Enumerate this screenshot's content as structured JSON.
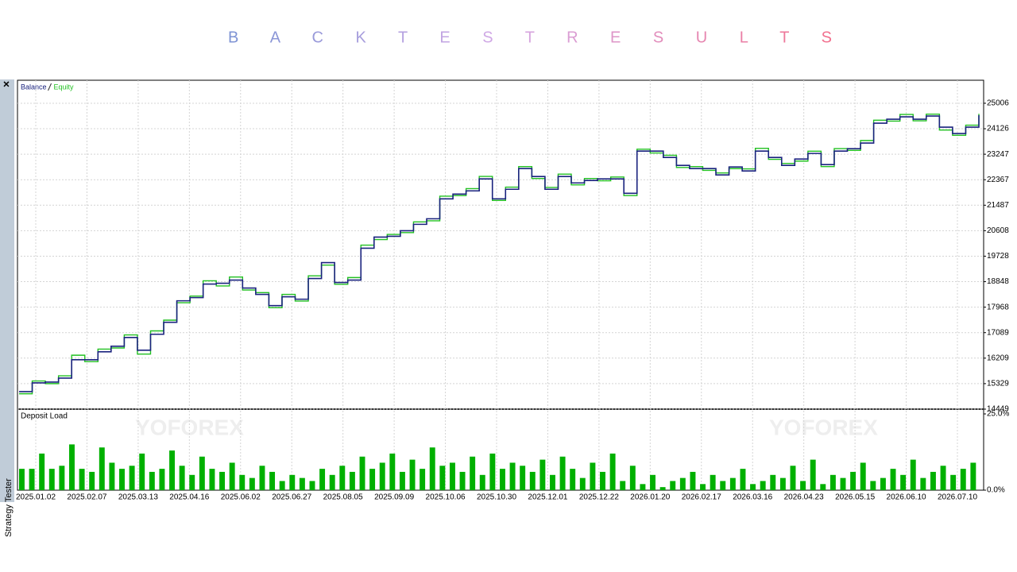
{
  "title": "B A C K T E S T R E S U L T S",
  "panel": {
    "label": "Strategy Tester",
    "close": "×"
  },
  "watermark": "YOFOREX",
  "chart_data": [
    {
      "type": "line",
      "series": [
        {
          "name": "Balance",
          "color": "#1a237e",
          "values": [
            15054,
            15356,
            15384,
            15521,
            16154,
            16154,
            16429,
            16621,
            16923,
            16484,
            17033,
            17446,
            18188,
            18298,
            18765,
            18793,
            18903,
            18628,
            18408,
            18023,
            18326,
            18243,
            18958,
            19507,
            18820,
            18903,
            20002,
            20387,
            20415,
            20607,
            20827,
            21019,
            21707,
            21872,
            21982,
            22394,
            21707,
            22037,
            22751,
            22476,
            22037,
            22476,
            22256,
            22339,
            22394,
            22394,
            21899,
            23356,
            23356,
            23136,
            22861,
            22751,
            22751,
            22531,
            22806,
            22668,
            23356,
            23136,
            22861,
            23081,
            23274,
            22888,
            23356,
            23438,
            23631,
            24318,
            24455,
            24538,
            24455,
            24565,
            24180,
            23961,
            24180,
            24593
          ]
        },
        {
          "name": "Equity",
          "color": "#22c022",
          "values": [
            14980,
            15420,
            15330,
            15600,
            16310,
            16090,
            16520,
            16560,
            17010,
            16350,
            17150,
            17520,
            18120,
            18350,
            18880,
            18700,
            19010,
            18560,
            18470,
            17950,
            18410,
            18180,
            19050,
            19420,
            18760,
            18990,
            20110,
            20300,
            20480,
            20540,
            20910,
            20950,
            21800,
            21820,
            22060,
            22480,
            21650,
            22110,
            22820,
            22410,
            22100,
            22560,
            22190,
            22410,
            22330,
            22460,
            21820,
            23420,
            23290,
            23210,
            22790,
            22820,
            22690,
            22600,
            22750,
            22740,
            23450,
            23070,
            22930,
            23010,
            23350,
            22820,
            23440,
            23380,
            23720,
            24420,
            24390,
            24620,
            24400,
            24630,
            24080,
            23900,
            24250,
            24640
          ]
        }
      ],
      "legend": "top-left",
      "ylim": [
        14449,
        25800
      ],
      "yticks": [
        14449,
        15329,
        16209,
        17089,
        17968,
        18848,
        19728,
        20608,
        21487,
        22367,
        23247,
        24126,
        25006
      ],
      "grid": true,
      "x_labels": [
        "2025.01.02",
        "2025.02.07",
        "2025.03.13",
        "2025.04.16",
        "2025.06.02",
        "2025.06.27",
        "2025.08.05",
        "2025.09.09",
        "2025.10.06",
        "2025.10.30",
        "2025.12.01",
        "2025.12.22",
        "2026.01.20",
        "2026.02.17",
        "2026.03.16",
        "2026.04.23",
        "2026.05.15",
        "2026.06.10",
        "2026.07.10"
      ]
    },
    {
      "type": "bar",
      "title": "Deposit Load",
      "color": "#00b000",
      "values": [
        7,
        7,
        12,
        7,
        8,
        15,
        7,
        6,
        14,
        9,
        7,
        8,
        12,
        6,
        7,
        13,
        8,
        5,
        11,
        7,
        6,
        9,
        5,
        4,
        8,
        6,
        3,
        5,
        4,
        3,
        7,
        5,
        8,
        6,
        11,
        7,
        9,
        12,
        6,
        10,
        7,
        14,
        8,
        9,
        6,
        11,
        5,
        12,
        7,
        9,
        8,
        6,
        10,
        5,
        11,
        7,
        4,
        9,
        6,
        12,
        3,
        8,
        2,
        5,
        1,
        3,
        4,
        6,
        2,
        5,
        3,
        4,
        7,
        2,
        3,
        5,
        4,
        8,
        3,
        10,
        2,
        5,
        4,
        6,
        9,
        3,
        4,
        7,
        5,
        10,
        4,
        6,
        8,
        5,
        7,
        9
      ],
      "ylim": [
        0,
        25
      ],
      "yticks": [
        {
          "value": 25,
          "label": "25.0%"
        },
        {
          "value": 0,
          "label": "0.0%"
        }
      ]
    }
  ]
}
